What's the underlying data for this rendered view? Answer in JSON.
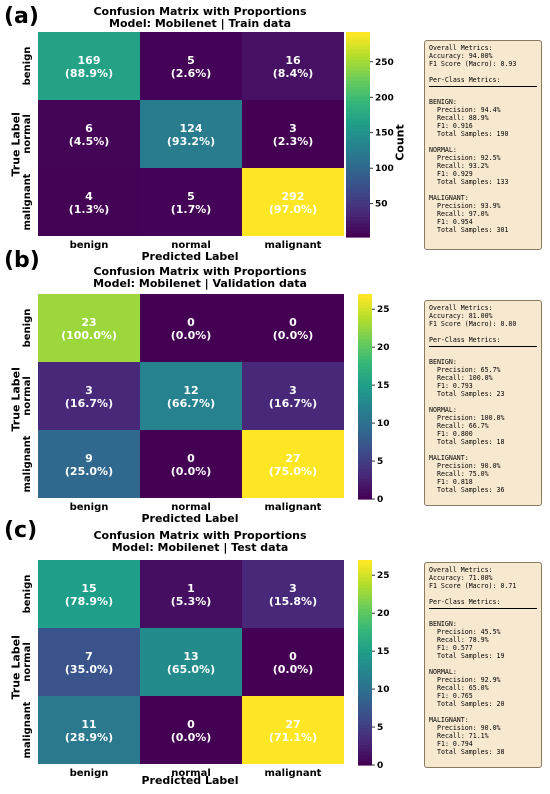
{
  "chart_data": [
    {
      "type": "heatmap",
      "panel_label": "(a)",
      "title": "Confusion Matrix with Proportions",
      "subtitle": "Model: Mobilenet | Train data",
      "xlabel": "Predicted Label",
      "ylabel": "True Label",
      "x_categories": [
        "benign",
        "normal",
        "malignant"
      ],
      "y_categories": [
        "benign",
        "normal",
        "malignant"
      ],
      "values": [
        [
          169,
          5,
          16
        ],
        [
          6,
          124,
          3
        ],
        [
          4,
          5,
          292
        ]
      ],
      "percent_labels": [
        [
          "(88.9%)",
          "(2.6%)",
          "(8.4%)"
        ],
        [
          "(4.5%)",
          "(93.2%)",
          "(2.3%)"
        ],
        [
          "(1.3%)",
          "(1.7%)",
          "(97.0%)"
        ]
      ],
      "colorbar_label": "Count",
      "colorbar_ticks": [
        50,
        100,
        150,
        200,
        250
      ],
      "colorbar_range": [
        3,
        292
      ],
      "colormap": "viridis",
      "metrics_text": {
        "overall_header": "Overall Metrics:",
        "accuracy": "Accuracy: 94.00%",
        "f1_macro": "F1 Score (Macro): 0.93",
        "per_class_header": "Per-Class Metrics:",
        "classes": [
          {
            "name": "BENIGN:",
            "precision": "Precision: 94.4%",
            "recall": "Recall: 88.9%",
            "f1": "F1: 0.916",
            "samples": "Total Samples: 190"
          },
          {
            "name": "NORMAL:",
            "precision": "Precision: 92.5%",
            "recall": "Recall: 93.2%",
            "f1": "F1: 0.929",
            "samples": "Total Samples: 133"
          },
          {
            "name": "MALIGNANT:",
            "precision": "Precision: 93.9%",
            "recall": "Recall: 97.0%",
            "f1": "F1: 0.954",
            "samples": "Total Samples: 301"
          }
        ]
      }
    },
    {
      "type": "heatmap",
      "panel_label": "(b)",
      "title": "Confusion Matrix with Proportions",
      "subtitle": "Model: Mobilenet | Validation data",
      "xlabel": "Predicted Label",
      "ylabel": "True Label",
      "x_categories": [
        "benign",
        "normal",
        "malignant"
      ],
      "y_categories": [
        "benign",
        "normal",
        "malignant"
      ],
      "values": [
        [
          23,
          0,
          0
        ],
        [
          3,
          12,
          3
        ],
        [
          9,
          0,
          27
        ]
      ],
      "percent_labels": [
        [
          "(100.0%)",
          "(0.0%)",
          "(0.0%)"
        ],
        [
          "(16.7%)",
          "(66.7%)",
          "(16.7%)"
        ],
        [
          "(25.0%)",
          "(0.0%)",
          "(75.0%)"
        ]
      ],
      "colorbar_label": "",
      "colorbar_ticks": [
        0,
        5,
        10,
        15,
        20,
        25
      ],
      "colorbar_range": [
        0,
        27
      ],
      "colormap": "viridis",
      "metrics_text": {
        "overall_header": "Overall Metrics:",
        "accuracy": "Accuracy: 81.00%",
        "f1_macro": "F1 Score (Macro): 0.80",
        "per_class_header": "Per-Class Metrics:",
        "classes": [
          {
            "name": "BENIGN:",
            "precision": "Precision: 65.7%",
            "recall": "Recall: 100.0%",
            "f1": "F1: 0.793",
            "samples": "Total Samples: 23"
          },
          {
            "name": "NORMAL:",
            "precision": "Precision: 100.0%",
            "recall": "Recall: 66.7%",
            "f1": "F1: 0.800",
            "samples": "Total Samples: 18"
          },
          {
            "name": "MALIGNANT:",
            "precision": "Precision: 90.0%",
            "recall": "Recall: 75.0%",
            "f1": "F1: 0.818",
            "samples": "Total Samples: 36"
          }
        ]
      }
    },
    {
      "type": "heatmap",
      "panel_label": "(c)",
      "title": "Confusion Matrix with Proportions",
      "subtitle": "Model: Mobilenet | Test data",
      "xlabel": "Predicted Label",
      "ylabel": "True Label",
      "x_categories": [
        "benign",
        "normal",
        "malignant"
      ],
      "y_categories": [
        "benign",
        "normal",
        "malignant"
      ],
      "values": [
        [
          15,
          1,
          3
        ],
        [
          7,
          13,
          0
        ],
        [
          11,
          0,
          27
        ]
      ],
      "percent_labels": [
        [
          "(78.9%)",
          "(5.3%)",
          "(15.8%)"
        ],
        [
          "(35.0%)",
          "(65.0%)",
          "(0.0%)"
        ],
        [
          "(28.9%)",
          "(0.0%)",
          "(71.1%)"
        ]
      ],
      "colorbar_label": "",
      "colorbar_ticks": [
        0,
        5,
        10,
        15,
        20,
        25
      ],
      "colorbar_range": [
        0,
        27
      ],
      "colormap": "viridis",
      "metrics_text": {
        "overall_header": "Overall Metrics:",
        "accuracy": "Accuracy: 71.00%",
        "f1_macro": "F1 Score (Macro): 0.71",
        "per_class_header": "Per-Class Metrics:",
        "classes": [
          {
            "name": "BENIGN:",
            "precision": "Precision: 45.5%",
            "recall": "Recall: 78.9%",
            "f1": "F1: 0.577",
            "samples": "Total Samples: 19"
          },
          {
            "name": "NORMAL:",
            "precision": "Precision: 92.9%",
            "recall": "Recall: 65.0%",
            "f1": "F1: 0.765",
            "samples": "Total Samples: 20"
          },
          {
            "name": "MALIGNANT:",
            "precision": "Precision: 90.0%",
            "recall": "Recall: 71.1%",
            "f1": "F1: 0.794",
            "samples": "Total Samples: 38"
          }
        ]
      }
    }
  ]
}
